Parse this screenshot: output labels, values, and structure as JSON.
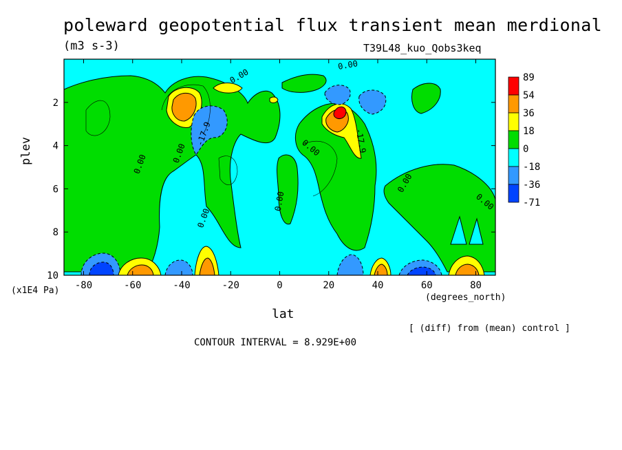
{
  "header": {
    "title": "poleward geopotential flux transient mean merdional",
    "units": "(m3 s-3)",
    "run_name": "T39L48_kuo_Qobs3keq"
  },
  "footer": {
    "diff_note": "[ (diff) from (mean) control ]",
    "contour_interval": "CONTOUR INTERVAL = 8.929E+00"
  },
  "colors": {
    "pos3": "#ff0000",
    "pos2": "#ff9900",
    "pos1": "#ffff00",
    "zero_pos": "#00dd00",
    "zero_neg": "#00ffff",
    "neg1": "#3399ff",
    "neg2": "#0044ff"
  },
  "chart_data": {
    "type": "contour",
    "xlabel": "lat",
    "ylabel": "plev",
    "x_units": "(degrees_north)",
    "y_units": "(x1E4 Pa)",
    "xlim": [
      -88,
      88
    ],
    "ylim": [
      10,
      0
    ],
    "xticks": [
      -80,
      -60,
      -40,
      -20,
      0,
      20,
      40,
      60,
      80
    ],
    "yticks": [
      2,
      4,
      6,
      8,
      10
    ],
    "colorbar": {
      "levels": [
        -71,
        -36,
        -18,
        0,
        18,
        36,
        54,
        89
      ],
      "colors": [
        "#0044ff",
        "#3399ff",
        "#00ffff",
        "#00dd00",
        "#ffff00",
        "#ff9900",
        "#ff0000"
      ]
    },
    "contour_labels": [
      {
        "text": "0.00",
        "lat": -56,
        "plev": 4.9,
        "angle": -70
      },
      {
        "text": "0.00",
        "lat": -40,
        "plev": 4.4,
        "angle": -70
      },
      {
        "text": "-17.9",
        "lat": -30,
        "plev": 3.5,
        "angle": -70
      },
      {
        "text": "0.00",
        "lat": -30,
        "plev": 7.4,
        "angle": -70
      },
      {
        "text": "0.00",
        "lat": -16,
        "plev": 0.9,
        "angle": -30
      },
      {
        "text": "0.00",
        "lat": 1,
        "plev": 6.6,
        "angle": -80
      },
      {
        "text": "0.00",
        "lat": 12,
        "plev": 4.2,
        "angle": 40
      },
      {
        "text": "0.00",
        "lat": 28,
        "plev": 0.4,
        "angle": -10
      },
      {
        "text": "-17.9",
        "lat": 32,
        "plev": 3.8,
        "angle": 80
      },
      {
        "text": "0.00",
        "lat": 52,
        "plev": 5.8,
        "angle": -60
      },
      {
        "text": "0.00",
        "lat": 83,
        "plev": 6.7,
        "angle": 40
      }
    ],
    "extrema": [
      {
        "lat": -46,
        "plev": 2.2,
        "value": 36
      },
      {
        "lat": -22,
        "plev": 1.3,
        "value": 18
      },
      {
        "lat": 25,
        "plev": 2.5,
        "value": 54
      },
      {
        "lat": -27,
        "plev": 2.8,
        "value": -18
      },
      {
        "lat": 23,
        "plev": 1.6,
        "value": -18
      },
      {
        "lat": 37,
        "plev": 1.9,
        "value": -18
      },
      {
        "lat": -77,
        "plev": 9.6,
        "value": -36
      },
      {
        "lat": -57,
        "plev": 9.6,
        "value": 36
      },
      {
        "lat": -40,
        "plev": 9.6,
        "value": -36
      },
      {
        "lat": -32,
        "plev": 9.5,
        "value": 36
      },
      {
        "lat": 28,
        "plev": 9.6,
        "value": -36
      },
      {
        "lat": 43,
        "plev": 9.6,
        "value": 36
      },
      {
        "lat": 62,
        "plev": 9.7,
        "value": -36
      },
      {
        "lat": 76,
        "plev": 9.6,
        "value": 36
      }
    ]
  }
}
